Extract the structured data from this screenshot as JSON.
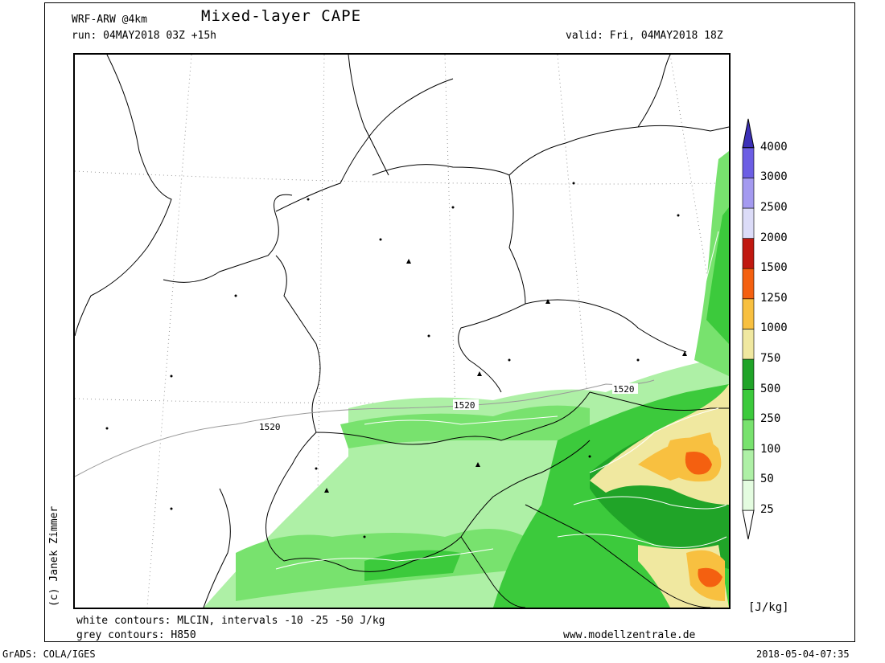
{
  "header": {
    "model": "WRF-ARW @4km",
    "title": "Mixed-layer CAPE",
    "run": "run: 04MAY2018 03Z +15h",
    "valid": "valid: Fri, 04MAY2018 18Z"
  },
  "footer": {
    "white_contours": "white contours: MLCIN, intervals -10 -25 -50 J/kg",
    "grey_contours": "grey contours: H850",
    "website": "www.modellzentrale.de",
    "software": "GrADS: COLA/IGES",
    "timestamp": "2018-05-04-07:35"
  },
  "credit": "(c) Janek Zimmer",
  "units": "[J/kg]",
  "contour_labels": [
    "1520",
    "1520",
    "1520"
  ],
  "colorbar": {
    "levels": [
      "25",
      "50",
      "100",
      "250",
      "500",
      "750",
      "1000",
      "1250",
      "1500",
      "2000",
      "2500",
      "3000",
      "4000"
    ],
    "colors": [
      "#e4fce0",
      "#aef0a6",
      "#78e26e",
      "#3cca3c",
      "#20a428",
      "#f0e8a0",
      "#f8c040",
      "#f46010",
      "#c01810",
      "#dcdcf8",
      "#a49af0",
      "#6c5ee4",
      "#3c30b8"
    ]
  }
}
